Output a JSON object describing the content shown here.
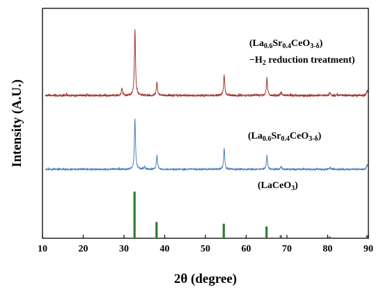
{
  "chart_data": {
    "type": "line",
    "xlabel": "2θ (degree)",
    "ylabel": "Intensity (A.U.)",
    "xlim": [
      10,
      90
    ],
    "xticks": [
      10,
      20,
      30,
      40,
      50,
      60,
      70,
      80,
      90
    ],
    "grid": false,
    "series": [
      {
        "label_parts": [
          {
            "t": "(La"
          },
          {
            "t": "0.6",
            "sub": true
          },
          {
            "t": "Sr"
          },
          {
            "t": "0.4",
            "sub": true
          },
          {
            "t": "CeO"
          },
          {
            "t": "3-δ",
            "sub": true
          },
          {
            "t": ")"
          }
        ],
        "label_parts_2": [
          {
            "t": "−H"
          },
          {
            "t": "2",
            "sub": true
          },
          {
            "t": " reduction treatment)"
          }
        ],
        "color": "#a0362c",
        "style": "pattern",
        "noise_seed": 7,
        "peaks": [
          {
            "x": 29.5,
            "h": 0.1
          },
          {
            "x": 32.7,
            "h": 1.0
          },
          {
            "x": 38.1,
            "h": 0.21
          },
          {
            "x": 54.6,
            "h": 0.32
          },
          {
            "x": 65.1,
            "h": 0.27
          },
          {
            "x": 68.6,
            "h": 0.05
          },
          {
            "x": 80.6,
            "h": 0.04
          },
          {
            "x": 89.7,
            "h": 0.08
          }
        ]
      },
      {
        "label_parts": [
          {
            "t": "(La"
          },
          {
            "t": "0.6",
            "sub": true
          },
          {
            "t": "Sr"
          },
          {
            "t": "0.4",
            "sub": true
          },
          {
            "t": "CeO"
          },
          {
            "t": "3-δ",
            "sub": true
          },
          {
            "t": ")"
          }
        ],
        "color": "#4a7fc1",
        "style": "pattern",
        "noise_seed": 13,
        "peaks": [
          {
            "x": 32.7,
            "h": 0.92
          },
          {
            "x": 35.0,
            "h": 0.04
          },
          {
            "x": 38.1,
            "h": 0.26
          },
          {
            "x": 54.6,
            "h": 0.38
          },
          {
            "x": 65.1,
            "h": 0.26
          },
          {
            "x": 68.6,
            "h": 0.05
          },
          {
            "x": 80.6,
            "h": 0.03
          },
          {
            "x": 89.7,
            "h": 0.09
          }
        ]
      },
      {
        "label_parts": [
          {
            "t": "(LaCeO"
          },
          {
            "t": "3",
            "sub": true
          },
          {
            "t": ")"
          }
        ],
        "color": "#2e7d32",
        "style": "sticks",
        "peaks": [
          {
            "x": 32.6,
            "h": 1.0
          },
          {
            "x": 38.0,
            "h": 0.34
          },
          {
            "x": 54.5,
            "h": 0.3
          },
          {
            "x": 65.0,
            "h": 0.24
          },
          {
            "x": 68.5,
            "h": 0.05
          },
          {
            "x": 80.5,
            "h": 0.02
          },
          {
            "x": 89.7,
            "h": 0.05
          }
        ]
      }
    ]
  }
}
